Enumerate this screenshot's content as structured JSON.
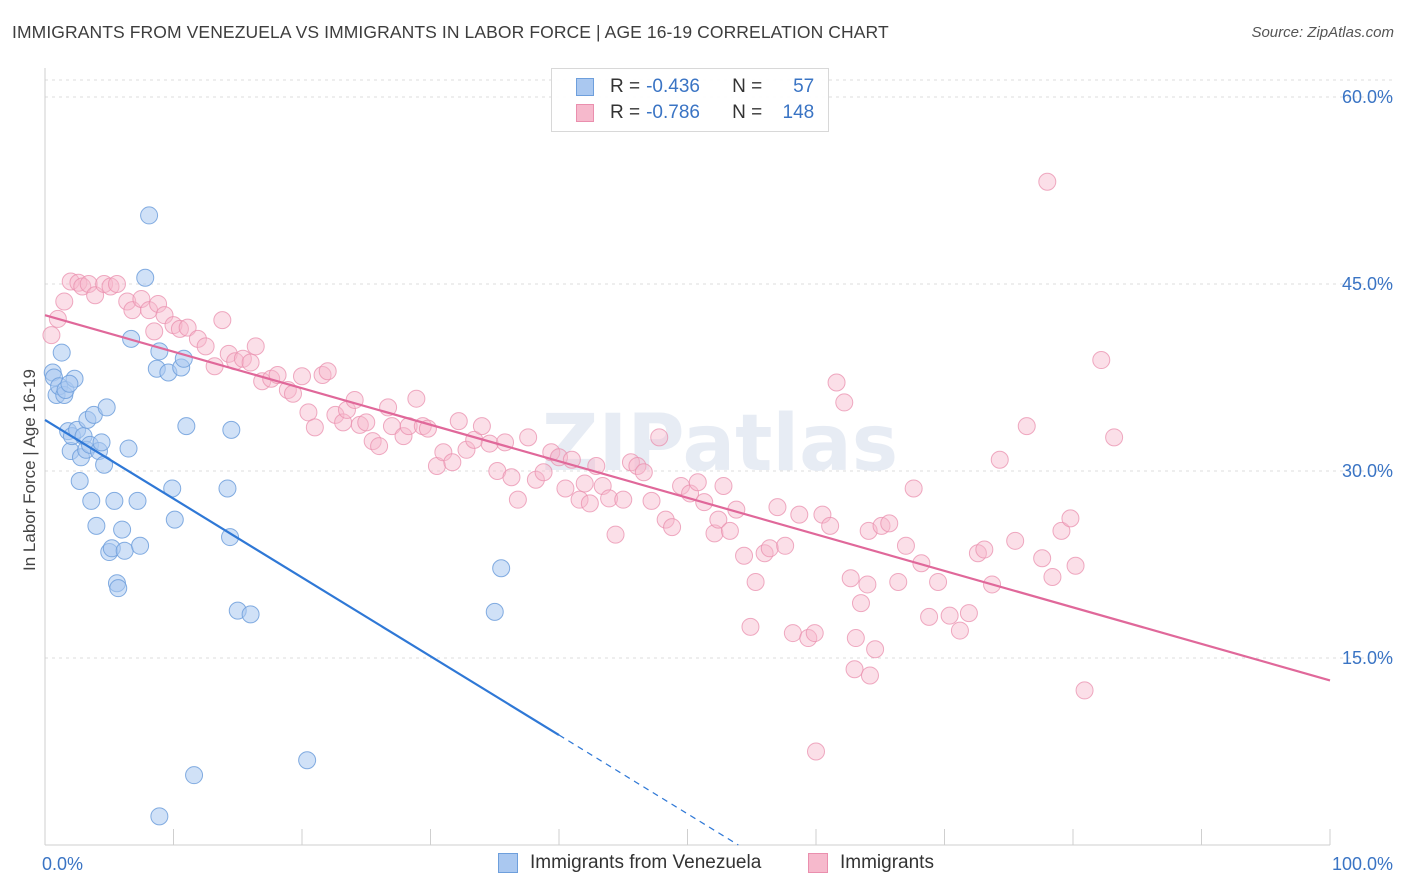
{
  "title": "IMMIGRANTS FROM VENEZUELA VS IMMIGRANTS IN LABOR FORCE | AGE 16-19 CORRELATION CHART",
  "source": "Source: ZipAtlas.com",
  "watermark": "ZIPatlas",
  "legend": {
    "series1": {
      "r_label": "R =",
      "r_value": "-0.436",
      "n_label": "N =",
      "n_value": "57"
    },
    "series2": {
      "r_label": "R =",
      "r_value": "-0.786",
      "n_label": "N =",
      "n_value": "148"
    }
  },
  "colors": {
    "blue_fill": "#aac8f0",
    "blue_stroke": "#6e9fdc",
    "blue_line": "#2f78d6",
    "pink_fill": "#f6b9cc",
    "pink_stroke": "#ea8fae",
    "pink_line": "#e0689a",
    "tick_label": "#3a74c4",
    "grid": "#dcdcdc"
  },
  "chart_data": {
    "type": "scatter",
    "title": "IMMIGRANTS FROM VENEZUELA VS IMMIGRANTS IN LABOR FORCE | AGE 16-19 CORRELATION CHART",
    "xlabel": "",
    "ylabel": "In Labor Force | Age 16-19",
    "xlim": [
      0,
      100
    ],
    "ylim": [
      0,
      60
    ],
    "x_tick_labels": [
      "0.0%",
      "100.0%"
    ],
    "y_ticks": [
      15,
      30,
      45,
      60
    ],
    "y_tick_labels": [
      "15.0%",
      "30.0%",
      "45.0%",
      "60.0%"
    ],
    "grid": true,
    "legend_position": "bottom",
    "series": [
      {
        "name": "Immigrants from Venezuela",
        "r": -0.436,
        "n": 57,
        "trend": {
          "x0": 0,
          "y0": 34.1,
          "x1": 100,
          "y1": -29.1,
          "solid_until_x": 40
        },
        "points": [
          [
            0.6,
            37.9
          ],
          [
            0.7,
            37.5
          ],
          [
            0.9,
            36.1
          ],
          [
            1.1,
            36.8
          ],
          [
            1.3,
            39.5
          ],
          [
            1.5,
            36.1
          ],
          [
            1.6,
            36.5
          ],
          [
            1.8,
            33.2
          ],
          [
            2.0,
            31.6
          ],
          [
            2.1,
            32.8
          ],
          [
            2.3,
            37.4
          ],
          [
            2.5,
            33.3
          ],
          [
            2.7,
            29.2
          ],
          [
            2.8,
            31.1
          ],
          [
            3.0,
            32.8
          ],
          [
            3.2,
            31.7
          ],
          [
            3.3,
            34.1
          ],
          [
            3.5,
            32.1
          ],
          [
            3.6,
            27.6
          ],
          [
            3.8,
            34.5
          ],
          [
            4.0,
            25.6
          ],
          [
            4.2,
            31.6
          ],
          [
            4.4,
            32.3
          ],
          [
            4.6,
            30.5
          ],
          [
            4.8,
            35.1
          ],
          [
            5.0,
            23.5
          ],
          [
            5.2,
            23.8
          ],
          [
            5.4,
            27.6
          ],
          [
            5.6,
            21.0
          ],
          [
            5.7,
            20.6
          ],
          [
            6.0,
            25.3
          ],
          [
            6.2,
            23.6
          ],
          [
            6.5,
            31.8
          ],
          [
            6.7,
            40.6
          ],
          [
            7.2,
            27.6
          ],
          [
            7.4,
            24.0
          ],
          [
            7.8,
            45.5
          ],
          [
            8.1,
            50.5
          ],
          [
            8.7,
            38.2
          ],
          [
            8.9,
            39.6
          ],
          [
            9.6,
            37.9
          ],
          [
            9.9,
            28.6
          ],
          [
            10.1,
            26.1
          ],
          [
            10.6,
            38.3
          ],
          [
            10.8,
            39.0
          ],
          [
            11.0,
            33.6
          ],
          [
            11.6,
            5.6
          ],
          [
            14.2,
            28.6
          ],
          [
            14.4,
            24.7
          ],
          [
            14.5,
            33.3
          ],
          [
            15.0,
            18.8
          ],
          [
            16.0,
            18.5
          ],
          [
            20.4,
            6.8
          ],
          [
            35.0,
            18.7
          ],
          [
            35.5,
            22.2
          ],
          [
            8.9,
            2.3
          ],
          [
            1.9,
            37.0
          ]
        ]
      },
      {
        "name": "Immigrants",
        "r": -0.786,
        "n": 148,
        "trend": {
          "x0": 0,
          "y0": 42.5,
          "x1": 100,
          "y1": 13.2
        },
        "points": [
          [
            0.5,
            40.9
          ],
          [
            1.0,
            42.2
          ],
          [
            1.5,
            43.6
          ],
          [
            2.0,
            45.2
          ],
          [
            2.6,
            45.1
          ],
          [
            2.9,
            44.8
          ],
          [
            3.4,
            45.0
          ],
          [
            3.9,
            44.1
          ],
          [
            4.6,
            45.0
          ],
          [
            5.1,
            44.8
          ],
          [
            5.6,
            45.0
          ],
          [
            6.4,
            43.6
          ],
          [
            6.8,
            42.9
          ],
          [
            7.5,
            43.8
          ],
          [
            8.1,
            42.9
          ],
          [
            8.5,
            41.2
          ],
          [
            8.8,
            43.4
          ],
          [
            9.3,
            42.5
          ],
          [
            10.0,
            41.7
          ],
          [
            10.5,
            41.4
          ],
          [
            11.1,
            41.5
          ],
          [
            11.9,
            40.6
          ],
          [
            12.5,
            40.0
          ],
          [
            13.2,
            38.4
          ],
          [
            13.8,
            42.1
          ],
          [
            14.3,
            39.4
          ],
          [
            14.8,
            38.8
          ],
          [
            15.4,
            39.0
          ],
          [
            16.0,
            38.7
          ],
          [
            16.4,
            40.0
          ],
          [
            16.9,
            37.2
          ],
          [
            17.6,
            37.4
          ],
          [
            18.1,
            37.7
          ],
          [
            18.9,
            36.5
          ],
          [
            19.3,
            36.2
          ],
          [
            20.0,
            37.6
          ],
          [
            20.5,
            34.7
          ],
          [
            21.0,
            33.5
          ],
          [
            21.6,
            37.7
          ],
          [
            22.0,
            38.0
          ],
          [
            22.6,
            34.5
          ],
          [
            23.2,
            33.9
          ],
          [
            23.5,
            34.9
          ],
          [
            24.1,
            35.7
          ],
          [
            24.5,
            33.7
          ],
          [
            25.0,
            33.9
          ],
          [
            25.5,
            32.4
          ],
          [
            26.0,
            32.0
          ],
          [
            26.7,
            35.1
          ],
          [
            27.0,
            33.6
          ],
          [
            27.9,
            32.8
          ],
          [
            28.3,
            33.6
          ],
          [
            28.9,
            35.8
          ],
          [
            29.4,
            33.6
          ],
          [
            29.8,
            33.4
          ],
          [
            30.5,
            30.4
          ],
          [
            31.0,
            31.5
          ],
          [
            31.7,
            30.7
          ],
          [
            32.2,
            34.0
          ],
          [
            32.8,
            31.7
          ],
          [
            33.4,
            32.5
          ],
          [
            34.0,
            33.6
          ],
          [
            34.6,
            32.2
          ],
          [
            35.2,
            30.0
          ],
          [
            35.8,
            32.3
          ],
          [
            36.3,
            29.5
          ],
          [
            36.8,
            27.7
          ],
          [
            37.6,
            32.7
          ],
          [
            38.2,
            29.3
          ],
          [
            38.8,
            29.9
          ],
          [
            39.4,
            31.5
          ],
          [
            40.0,
            31.1
          ],
          [
            40.5,
            28.6
          ],
          [
            41.0,
            30.9
          ],
          [
            41.6,
            27.7
          ],
          [
            42.0,
            29.0
          ],
          [
            42.4,
            27.4
          ],
          [
            42.9,
            30.4
          ],
          [
            43.4,
            28.8
          ],
          [
            43.9,
            27.8
          ],
          [
            44.4,
            24.9
          ],
          [
            45.0,
            27.7
          ],
          [
            45.6,
            30.7
          ],
          [
            46.1,
            30.4
          ],
          [
            46.6,
            29.9
          ],
          [
            47.2,
            27.6
          ],
          [
            47.8,
            32.7
          ],
          [
            48.3,
            26.1
          ],
          [
            48.8,
            25.5
          ],
          [
            49.5,
            28.8
          ],
          [
            50.2,
            28.2
          ],
          [
            50.8,
            29.1
          ],
          [
            51.3,
            27.5
          ],
          [
            52.1,
            25.0
          ],
          [
            52.4,
            26.1
          ],
          [
            52.8,
            28.8
          ],
          [
            53.3,
            25.2
          ],
          [
            53.8,
            26.9
          ],
          [
            54.4,
            23.2
          ],
          [
            54.9,
            17.5
          ],
          [
            55.3,
            21.1
          ],
          [
            56.0,
            23.4
          ],
          [
            56.4,
            23.8
          ],
          [
            57.0,
            27.1
          ],
          [
            57.6,
            24.0
          ],
          [
            58.2,
            17.0
          ],
          [
            58.7,
            26.5
          ],
          [
            59.4,
            16.6
          ],
          [
            59.9,
            17.0
          ],
          [
            60.5,
            26.5
          ],
          [
            61.1,
            25.6
          ],
          [
            61.6,
            37.1
          ],
          [
            62.2,
            35.5
          ],
          [
            62.7,
            21.4
          ],
          [
            63.1,
            16.6
          ],
          [
            63.5,
            19.4
          ],
          [
            64.1,
            25.2
          ],
          [
            64.6,
            15.7
          ],
          [
            65.1,
            25.6
          ],
          [
            65.7,
            25.8
          ],
          [
            66.4,
            21.1
          ],
          [
            67.0,
            24.0
          ],
          [
            67.6,
            28.6
          ],
          [
            68.2,
            22.6
          ],
          [
            68.8,
            18.3
          ],
          [
            69.5,
            21.1
          ],
          [
            70.4,
            18.4
          ],
          [
            71.2,
            17.2
          ],
          [
            71.9,
            18.6
          ],
          [
            72.6,
            23.4
          ],
          [
            73.1,
            23.7
          ],
          [
            73.7,
            20.9
          ],
          [
            74.3,
            30.9
          ],
          [
            75.5,
            24.4
          ],
          [
            76.4,
            33.6
          ],
          [
            77.6,
            23.0
          ],
          [
            78.4,
            21.5
          ],
          [
            79.1,
            25.2
          ],
          [
            79.8,
            26.2
          ],
          [
            80.2,
            22.4
          ],
          [
            82.2,
            38.9
          ],
          [
            83.2,
            32.7
          ],
          [
            63.0,
            14.1
          ],
          [
            64.0,
            20.9
          ],
          [
            78.0,
            53.2
          ],
          [
            64.2,
            13.6
          ],
          [
            60.0,
            7.5
          ],
          [
            80.9,
            12.4
          ]
        ]
      }
    ]
  }
}
